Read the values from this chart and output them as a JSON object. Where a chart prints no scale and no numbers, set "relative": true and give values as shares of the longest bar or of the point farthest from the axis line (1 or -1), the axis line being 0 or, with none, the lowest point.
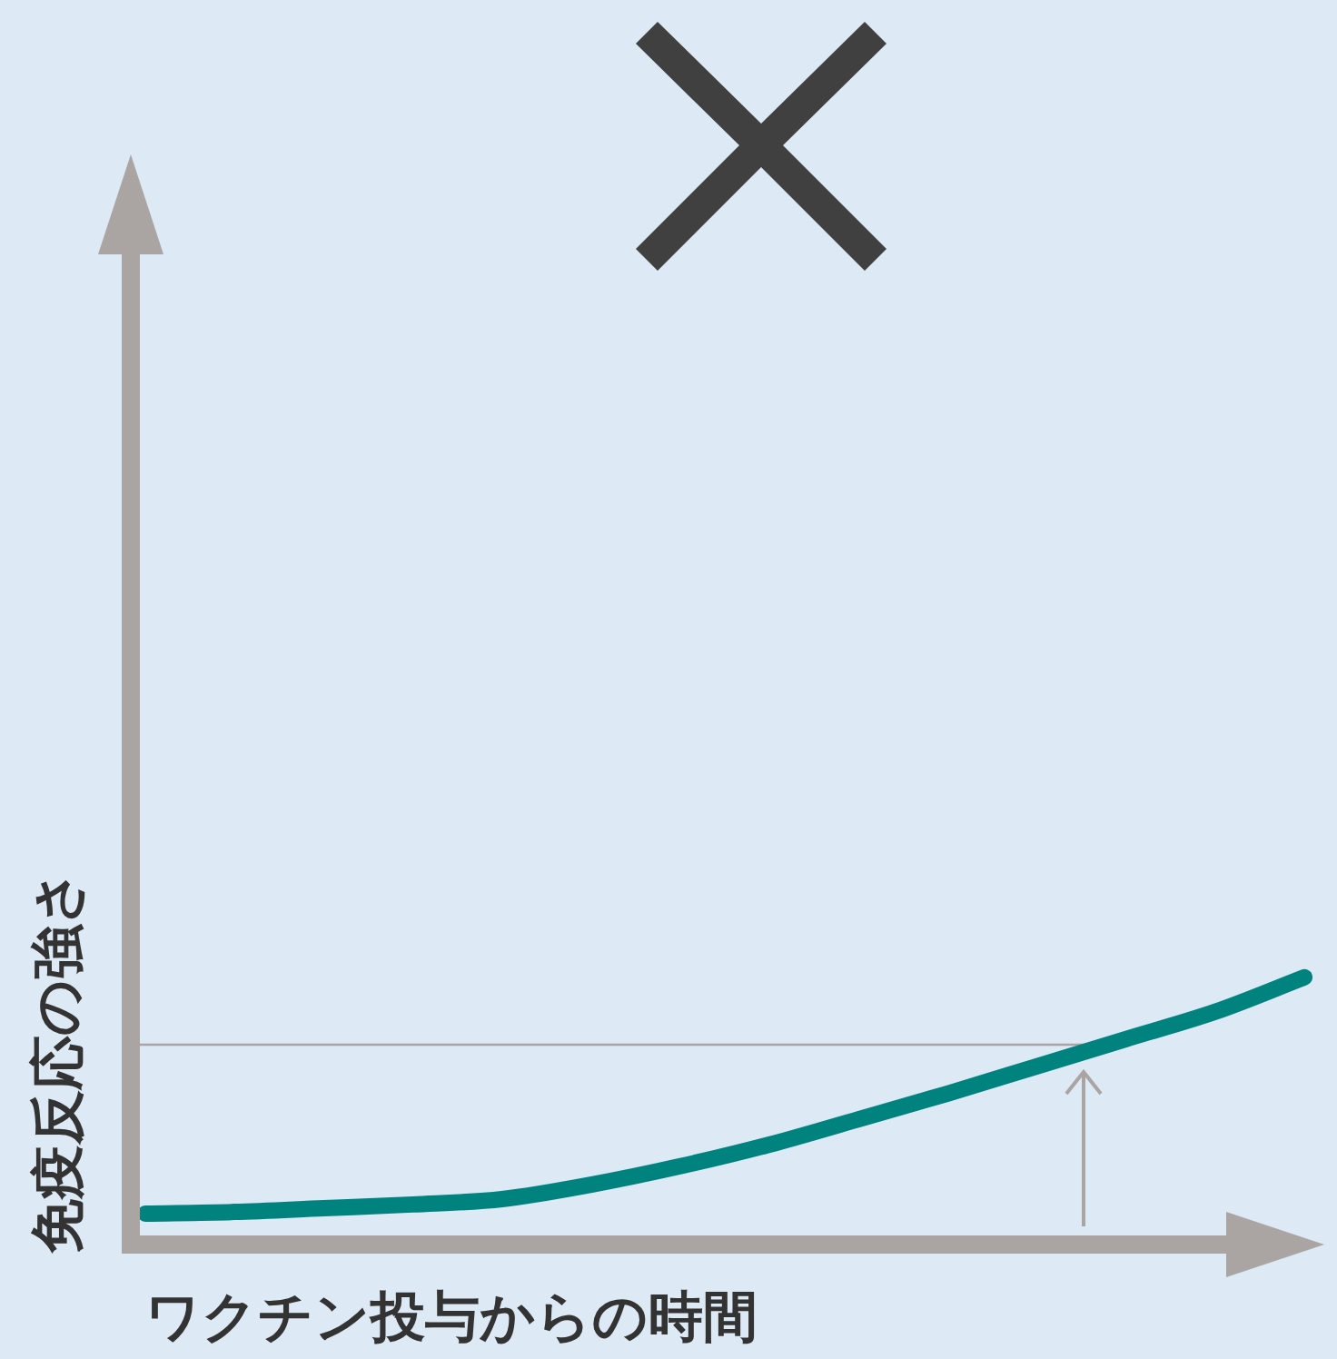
{
  "chart_data": {
    "type": "line",
    "relative": true,
    "xlabel": "ワクチン投与からの時間",
    "ylabel": "免疫反応の強さ",
    "categories": [
      null,
      null,
      null,
      null,
      null,
      null,
      null,
      null,
      null,
      null,
      null,
      null,
      null,
      null
    ],
    "series": [
      {
        "color": "#00827f",
        "values": [
          0.116,
          0.122,
          0.136,
          0.15,
          0.17,
          0.224,
          0.293,
          0.374,
          0.469,
          0.565,
          0.667,
          0.769,
          0.871,
          1
        ]
      }
    ],
    "ref_lines": [
      {
        "axis": "y",
        "value": 0.748,
        "color": "#aaa5a3"
      }
    ],
    "marker": "none",
    "line_style": "solid",
    "legend": false,
    "tick_labels": false
  }
}
